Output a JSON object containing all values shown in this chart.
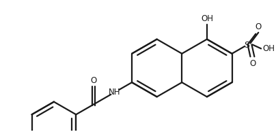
{
  "bg_color": "#ffffff",
  "line_color": "#1a1a1a",
  "lw": 1.6,
  "figsize": [
    4.04,
    1.94
  ],
  "dpi": 100,
  "xlim": [
    0,
    404
  ],
  "ylim": [
    0,
    194
  ]
}
